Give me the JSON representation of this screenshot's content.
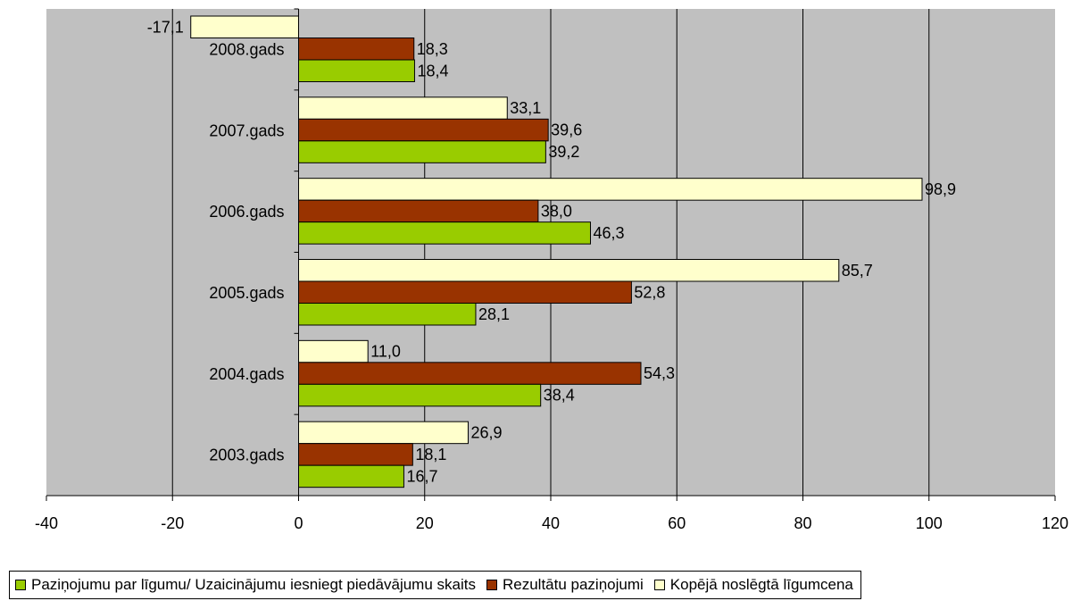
{
  "chart_data": {
    "type": "bar",
    "orientation": "horizontal",
    "categories": [
      "2008.gads",
      "2007.gads",
      "2006.gads",
      "2005.gads",
      "2004.gads",
      "2003.gads"
    ],
    "series": [
      {
        "name": "Kopējā noslēgtā līgumcena",
        "color": "#ffffcc",
        "values": [
          -17.1,
          33.1,
          98.9,
          85.7,
          11.0,
          26.9
        ],
        "labels": [
          "-17,1",
          "33,1",
          "98,9",
          "85,7",
          "11,0",
          "26,9"
        ]
      },
      {
        "name": "Rezultātu paziņojumi",
        "color": "#993300",
        "values": [
          18.3,
          39.6,
          38.0,
          52.8,
          54.3,
          18.1
        ],
        "labels": [
          "18,3",
          "39,6",
          "38,0",
          "52,8",
          "54,3",
          "18,1"
        ]
      },
      {
        "name": "Paziņojumu par līgumu/ Uzaicinājumu iesniegt piedāvājumu skaits",
        "color": "#99cc00",
        "values": [
          18.4,
          39.2,
          46.3,
          28.1,
          38.4,
          16.7
        ],
        "labels": [
          "18,4",
          "39,2",
          "46,3",
          "28,1",
          "38,4",
          "16,7"
        ]
      }
    ],
    "xlim": [
      -40,
      120
    ],
    "xticks": [
      "-40",
      "-20",
      "0",
      "20",
      "40",
      "60",
      "80",
      "100",
      "120"
    ],
    "grid": true,
    "plot_background": "#c0c0c0",
    "legend_position": "bottom"
  },
  "legend": {
    "items": [
      {
        "label": "Paziņojumu par līgumu/ Uzaicinājumu iesniegt piedāvājumu skaits",
        "color": "#99cc00"
      },
      {
        "label": "Rezultātu paziņojumi",
        "color": "#993300"
      },
      {
        "label": "Kopējā noslēgtā līgumcena",
        "color": "#ffffcc"
      }
    ]
  }
}
